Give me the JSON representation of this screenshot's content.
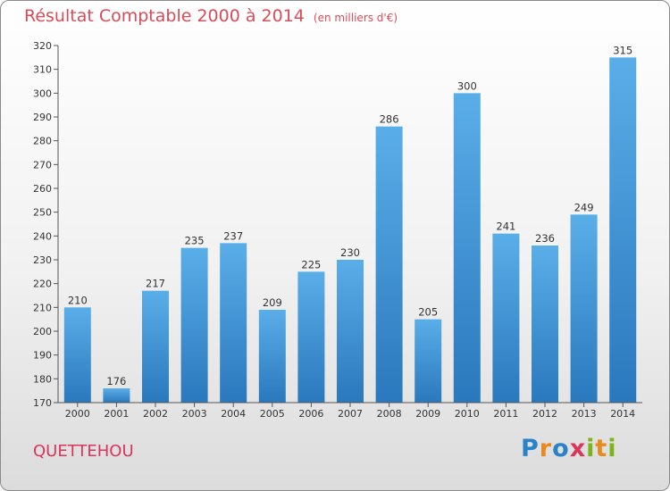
{
  "title": "Résultat Comptable 2000 à 2014",
  "subtitle": "(en milliers d'€)",
  "commune": "QUETTEHOU",
  "brand": {
    "text": "Proxiti",
    "letters": [
      "P",
      "r",
      "o",
      "x",
      "i",
      "t",
      "i"
    ],
    "colors": [
      "#2a83c8",
      "#e88a1f",
      "#2a83c8",
      "#d8365a",
      "#7ab51d",
      "#e88a1f",
      "#7ab51d"
    ]
  },
  "chart_data": {
    "type": "bar",
    "title": "Résultat Comptable 2000 à 2014",
    "subtitle": "(en milliers d'€)",
    "xlabel": "",
    "ylabel": "",
    "categories": [
      "2000",
      "2001",
      "2002",
      "2003",
      "2004",
      "2005",
      "2006",
      "2007",
      "2008",
      "2009",
      "2010",
      "2011",
      "2012",
      "2013",
      "2014"
    ],
    "values": [
      210,
      176,
      217,
      235,
      237,
      209,
      225,
      230,
      286,
      205,
      300,
      241,
      236,
      249,
      315
    ],
    "ylim": [
      170,
      320
    ],
    "yticks": [
      170,
      180,
      190,
      200,
      210,
      220,
      230,
      240,
      250,
      260,
      270,
      280,
      290,
      300,
      310,
      320
    ],
    "grid": false,
    "bar_color_top": "#5aaee8",
    "bar_color_bottom": "#2a78bd"
  }
}
